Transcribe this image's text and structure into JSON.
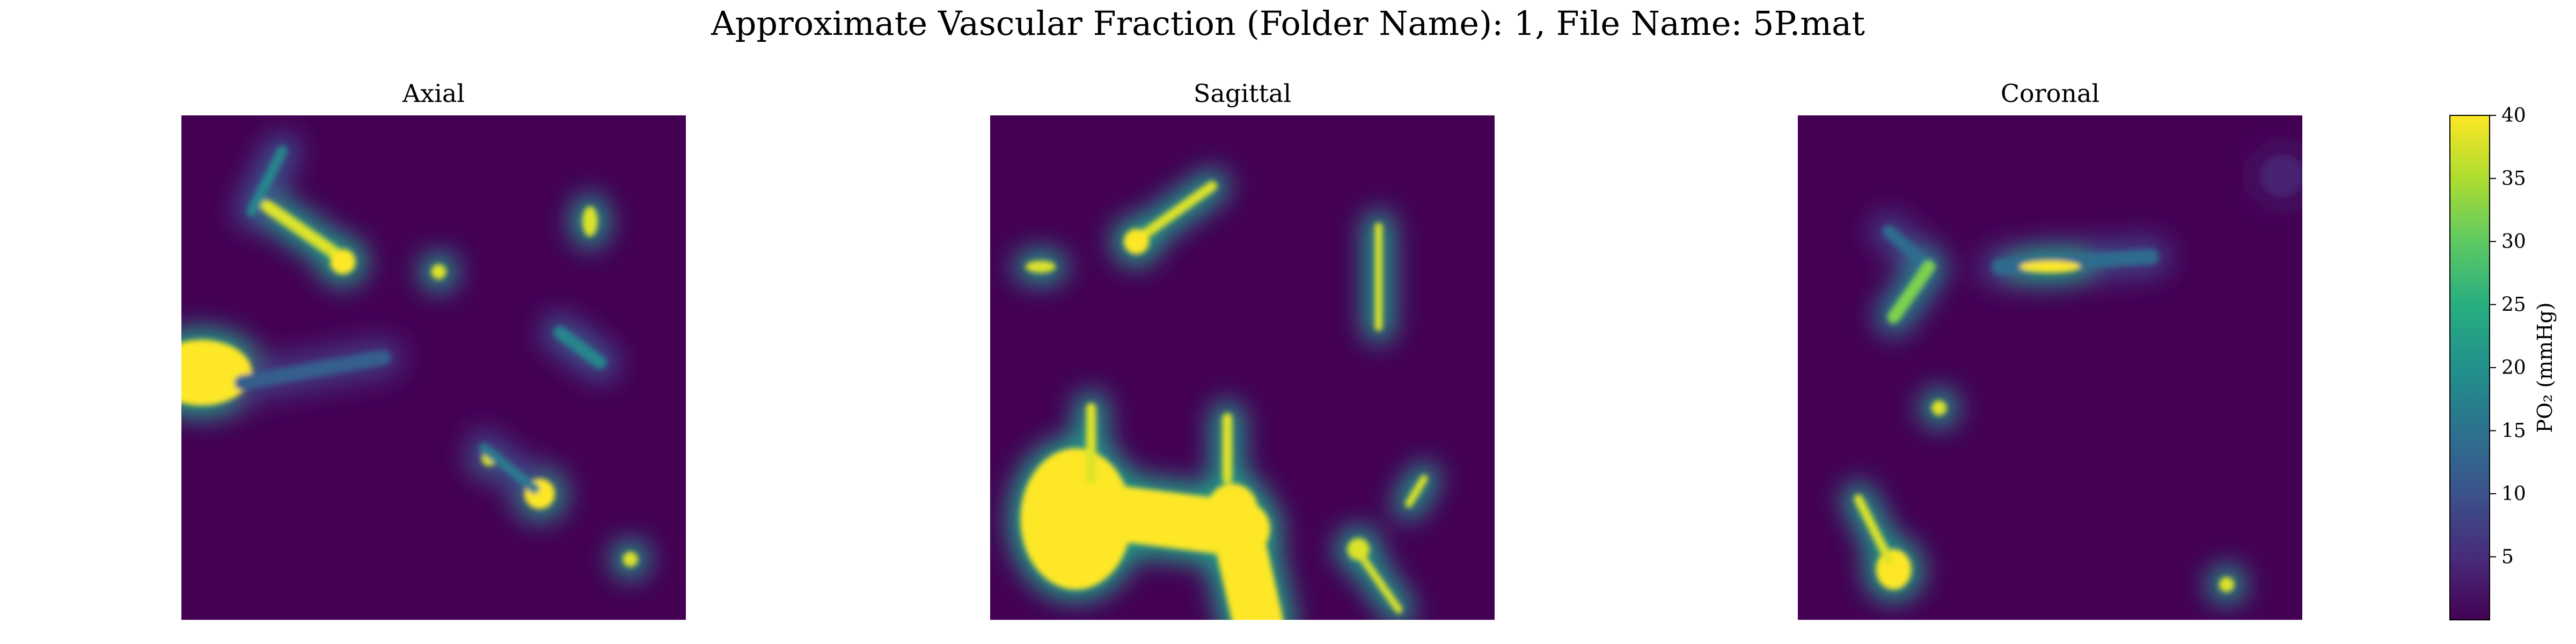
{
  "figure": {
    "title": "Approximate Vascular Fraction (Folder Name): 1, File Name: 5P.mat"
  },
  "chart_data": {
    "type": "heatmap",
    "colormap": "viridis",
    "colormap_stops": [
      "#440154",
      "#472c7a",
      "#3b528b",
      "#2c728e",
      "#21918c",
      "#28ae80",
      "#5ec962",
      "#addc30",
      "#fde725"
    ],
    "value_range": [
      0,
      40
    ],
    "panels": [
      {
        "title": "Axial",
        "blobs": [
          {
            "type": "line",
            "x1": 0.17,
            "y1": 0.18,
            "x2": 0.3,
            "y2": 0.27,
            "w": 0.025,
            "v": 38
          },
          {
            "type": "circle",
            "cx": 0.32,
            "cy": 0.29,
            "r": 0.025,
            "v": 40
          },
          {
            "type": "line",
            "x1": 0.14,
            "y1": 0.19,
            "x2": 0.2,
            "y2": 0.07,
            "w": 0.02,
            "v": 18
          },
          {
            "type": "circle",
            "cx": 0.51,
            "cy": 0.31,
            "r": 0.015,
            "v": 38
          },
          {
            "type": "ellipse",
            "cx": 0.81,
            "cy": 0.21,
            "rx": 0.015,
            "ry": 0.03,
            "v": 38
          },
          {
            "type": "ellipse",
            "cx": 0.04,
            "cy": 0.51,
            "rx": 0.1,
            "ry": 0.065,
            "v": 40
          },
          {
            "type": "line",
            "x1": 0.12,
            "y1": 0.53,
            "x2": 0.4,
            "y2": 0.48,
            "w": 0.03,
            "v": 12
          },
          {
            "type": "line",
            "x1": 0.75,
            "y1": 0.43,
            "x2": 0.83,
            "y2": 0.49,
            "w": 0.025,
            "v": 18
          },
          {
            "type": "circle",
            "cx": 0.61,
            "cy": 0.68,
            "r": 0.015,
            "v": 38
          },
          {
            "type": "circle",
            "cx": 0.71,
            "cy": 0.75,
            "r": 0.03,
            "v": 40
          },
          {
            "type": "line",
            "x1": 0.6,
            "y1": 0.66,
            "x2": 0.7,
            "y2": 0.74,
            "w": 0.02,
            "v": 16
          },
          {
            "type": "circle",
            "cx": 0.89,
            "cy": 0.88,
            "r": 0.015,
            "v": 38
          }
        ]
      },
      {
        "title": "Sagittal",
        "blobs": [
          {
            "type": "line",
            "x1": 0.3,
            "y1": 0.24,
            "x2": 0.44,
            "y2": 0.14,
            "w": 0.02,
            "v": 38
          },
          {
            "type": "circle",
            "cx": 0.29,
            "cy": 0.25,
            "r": 0.025,
            "v": 40
          },
          {
            "type": "ellipse",
            "cx": 0.1,
            "cy": 0.3,
            "rx": 0.03,
            "ry": 0.012,
            "v": 38
          },
          {
            "type": "line",
            "x1": 0.77,
            "y1": 0.22,
            "x2": 0.77,
            "y2": 0.42,
            "w": 0.015,
            "v": 38
          },
          {
            "type": "ellipse",
            "cx": 0.17,
            "cy": 0.8,
            "rx": 0.11,
            "ry": 0.14,
            "v": 40
          },
          {
            "type": "line",
            "x1": 0.18,
            "y1": 0.78,
            "x2": 0.5,
            "y2": 0.82,
            "w": 0.11,
            "v": 40
          },
          {
            "type": "line",
            "x1": 0.48,
            "y1": 0.78,
            "x2": 0.53,
            "y2": 1.0,
            "w": 0.1,
            "v": 40
          },
          {
            "type": "line",
            "x1": 0.2,
            "y1": 0.72,
            "x2": 0.2,
            "y2": 0.58,
            "w": 0.02,
            "v": 38
          },
          {
            "type": "line",
            "x1": 0.47,
            "y1": 0.72,
            "x2": 0.47,
            "y2": 0.6,
            "w": 0.02,
            "v": 38
          },
          {
            "type": "circle",
            "cx": 0.73,
            "cy": 0.86,
            "r": 0.022,
            "v": 38
          },
          {
            "type": "line",
            "x1": 0.74,
            "y1": 0.88,
            "x2": 0.81,
            "y2": 0.98,
            "w": 0.015,
            "v": 38
          },
          {
            "type": "line",
            "x1": 0.83,
            "y1": 0.77,
            "x2": 0.86,
            "y2": 0.72,
            "w": 0.015,
            "v": 38
          }
        ]
      },
      {
        "title": "Coronal",
        "blobs": [
          {
            "type": "line",
            "x1": 0.4,
            "y1": 0.3,
            "x2": 0.7,
            "y2": 0.28,
            "w": 0.03,
            "v": 14
          },
          {
            "type": "ellipse",
            "cx": 0.5,
            "cy": 0.3,
            "rx": 0.06,
            "ry": 0.012,
            "v": 40
          },
          {
            "type": "line",
            "x1": 0.18,
            "y1": 0.23,
            "x2": 0.26,
            "y2": 0.3,
            "w": 0.025,
            "v": 14
          },
          {
            "type": "line",
            "x1": 0.19,
            "y1": 0.4,
            "x2": 0.26,
            "y2": 0.3,
            "w": 0.025,
            "v": 32
          },
          {
            "type": "circle",
            "cx": 0.28,
            "cy": 0.58,
            "r": 0.015,
            "v": 38
          },
          {
            "type": "ellipse",
            "cx": 0.19,
            "cy": 0.9,
            "rx": 0.035,
            "ry": 0.04,
            "v": 40
          },
          {
            "type": "line",
            "x1": 0.12,
            "y1": 0.76,
            "x2": 0.18,
            "y2": 0.88,
            "w": 0.018,
            "v": 38
          },
          {
            "type": "circle",
            "cx": 0.85,
            "cy": 0.93,
            "r": 0.015,
            "v": 38
          },
          {
            "type": "circle",
            "cx": 0.96,
            "cy": 0.12,
            "r": 0.04,
            "v": 4
          }
        ]
      }
    ],
    "colorbar": {
      "label": "PO₂ (mmHg)",
      "range": [
        0,
        40
      ],
      "ticks": [
        5,
        10,
        15,
        20,
        25,
        30,
        35,
        40
      ]
    }
  }
}
